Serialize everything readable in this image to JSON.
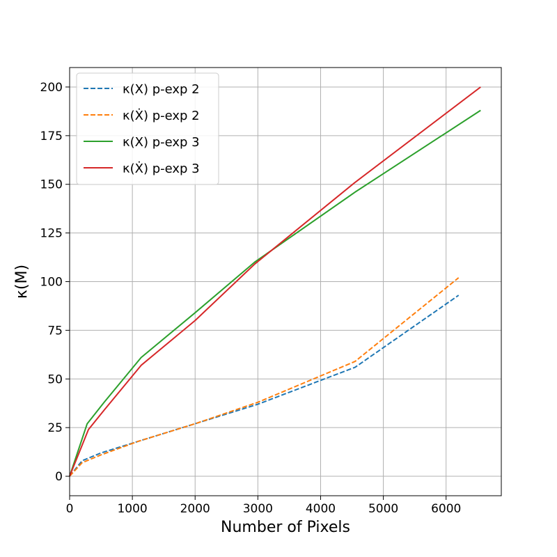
{
  "chart_data": {
    "type": "line",
    "xlabel": "Number of Pixels",
    "ylabel": "κ(M)",
    "xlim": [
      0,
      6880
    ],
    "ylim": [
      -10,
      210
    ],
    "xticks": [
      0,
      1000,
      2000,
      3000,
      4000,
      5000,
      6000
    ],
    "yticks": [
      0,
      25,
      50,
      75,
      100,
      125,
      150,
      175,
      200
    ],
    "xtick_labels": [
      "0",
      "1000",
      "2000",
      "3000",
      "4000",
      "5000",
      "6000"
    ],
    "ytick_labels": [
      "0",
      "25",
      "50",
      "75",
      "100",
      "125",
      "150",
      "175",
      "200"
    ],
    "grid": true,
    "legend_position": "top-left",
    "series": [
      {
        "name": "κ(X) p-exp 2",
        "color": "#1f77b4",
        "style": "dashed",
        "x": [
          0,
          200,
          500,
          1100,
          2000,
          3000,
          4550,
          6200
        ],
        "y": [
          0,
          8,
          12,
          18,
          27,
          37,
          56,
          93
        ]
      },
      {
        "name": "κ(Ẋ) p-exp 2",
        "color": "#ff7f0e",
        "style": "dashed",
        "x": [
          0,
          200,
          500,
          1100,
          2000,
          3000,
          4550,
          6200
        ],
        "y": [
          0,
          7,
          11,
          18,
          27,
          38,
          59,
          102
        ]
      },
      {
        "name": "κ(X) p-exp 3",
        "color": "#2ca02c",
        "style": "solid",
        "x": [
          0,
          280,
          550,
          1140,
          2000,
          2950,
          4550,
          6550
        ],
        "y": [
          0,
          27,
          38,
          61,
          84,
          110,
          146,
          188
        ]
      },
      {
        "name": "κ(Ẋ) p-exp 3",
        "color": "#d62728",
        "style": "solid",
        "x": [
          0,
          300,
          550,
          1140,
          2000,
          2950,
          4550,
          6550
        ],
        "y": [
          0,
          24,
          34,
          57,
          80,
          109,
          151,
          200
        ]
      }
    ]
  }
}
